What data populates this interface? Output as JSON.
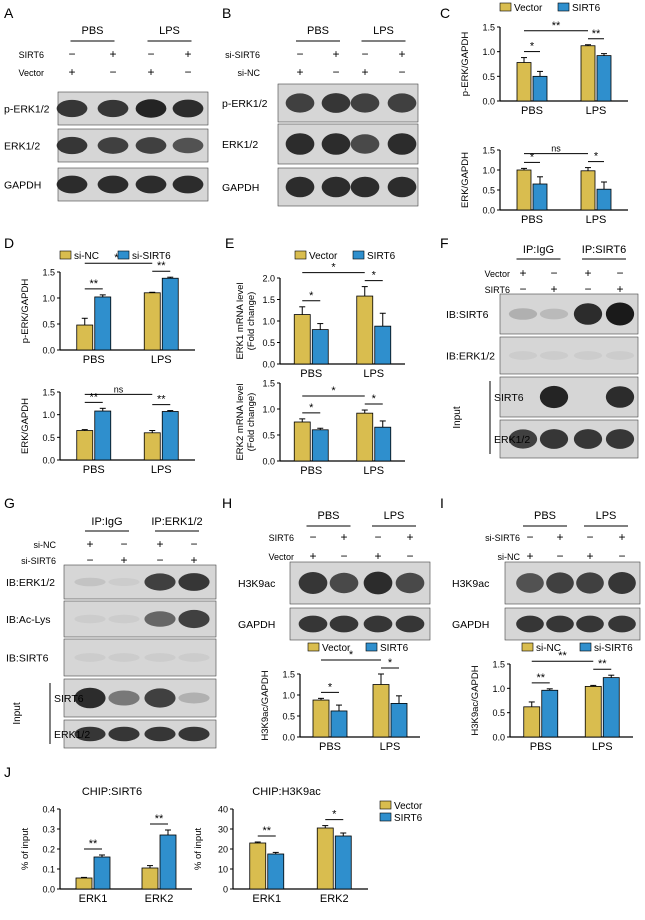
{
  "colors": {
    "vector": "#d9bd4f",
    "sirt6": "#2f8fcd",
    "axis": "#000000",
    "blot_bg": "#d6d6d6",
    "band": "#1a1a1a"
  },
  "panels": {
    "A": {
      "letter": "A",
      "groups": [
        "PBS",
        "LPS"
      ],
      "cond_labels": [
        "SIRT6",
        "Vector"
      ],
      "cond_signs": [
        [
          "−",
          "+",
          "−",
          "+"
        ],
        [
          "+",
          "−",
          "+",
          "−"
        ]
      ],
      "bands": [
        "p-ERK1/2",
        "ERK1/2",
        "GAPDH"
      ]
    },
    "B": {
      "letter": "B",
      "groups": [
        "PBS",
        "LPS"
      ],
      "cond_labels": [
        "si-SIRT6",
        "si-NC"
      ],
      "cond_signs": [
        [
          "−",
          "+",
          "−",
          "+"
        ],
        [
          "+",
          "−",
          "+",
          "−"
        ]
      ],
      "bands": [
        "p-ERK1/2",
        "ERK1/2",
        "GAPDH"
      ]
    },
    "F": {
      "letter": "F",
      "groups": [
        "IP:IgG",
        "IP:SIRT6"
      ],
      "cond_labels": [
        "Vector",
        "SIRT6"
      ],
      "cond_signs": [
        [
          "+",
          "−",
          "+",
          "−"
        ],
        [
          "−",
          "+",
          "−",
          "+"
        ]
      ],
      "bands": [
        "IB:SIRT6",
        "IB:ERK1/2",
        "SIRT6",
        "ERK1/2"
      ],
      "input_label": "Input"
    },
    "G": {
      "letter": "G",
      "groups": [
        "IP:IgG",
        "IP:ERK1/2"
      ],
      "cond_labels": [
        "si-NC",
        "si-SIRT6"
      ],
      "cond_signs": [
        [
          "+",
          "−",
          "+",
          "−"
        ],
        [
          "−",
          "+",
          "−",
          "+"
        ]
      ],
      "bands": [
        "IB:ERK1/2",
        "IB:Ac-Lys",
        "IB:SIRT6",
        "SIRT6",
        "ERK1/2"
      ],
      "input_label": "Input"
    },
    "H": {
      "letter": "H",
      "groups": [
        "PBS",
        "LPS"
      ],
      "cond_labels": [
        "SIRT6",
        "Vector"
      ],
      "cond_signs": [
        [
          "−",
          "+",
          "−",
          "+"
        ],
        [
          "+",
          "−",
          "+",
          "−"
        ]
      ],
      "bands": [
        "H3K9ac",
        "GAPDH"
      ]
    },
    "I": {
      "letter": "I",
      "groups": [
        "PBS",
        "LPS"
      ],
      "cond_labels": [
        "si-SIRT6",
        "si-NC"
      ],
      "cond_signs": [
        [
          "−",
          "+",
          "−",
          "+"
        ],
        [
          "+",
          "−",
          "+",
          "−"
        ]
      ],
      "bands": [
        "H3K9ac",
        "GAPDH"
      ]
    },
    "C": {
      "letter": "C"
    },
    "D": {
      "letter": "D"
    },
    "E": {
      "letter": "E"
    },
    "J": {
      "letter": "J"
    }
  },
  "chart_data": [
    {
      "id": "C1",
      "type": "bar",
      "panel": "C",
      "categories": [
        "PBS",
        "LPS"
      ],
      "legend": [
        "Vector",
        "SIRT6"
      ],
      "series": [
        {
          "name": "Vector",
          "values": [
            0.78,
            1.12
          ],
          "errors": [
            0.1,
            0.02
          ]
        },
        {
          "name": "SIRT6",
          "values": [
            0.5,
            0.92
          ],
          "errors": [
            0.1,
            0.04
          ]
        }
      ],
      "ylabel": "p-ERK/GAPDH",
      "yticks": [
        "0.0",
        "0.5",
        "1.0",
        "1.5"
      ],
      "ylim": [
        0,
        1.5
      ],
      "sig": [
        {
          "a": [
            0,
            0
          ],
          "b": [
            0,
            1
          ],
          "label": "*"
        },
        {
          "a": [
            0,
            0
          ],
          "b": [
            1,
            0
          ],
          "label": "**"
        },
        {
          "a": [
            1,
            0
          ],
          "b": [
            1,
            1
          ],
          "label": "**"
        }
      ]
    },
    {
      "id": "C2",
      "type": "bar",
      "panel": "C",
      "categories": [
        "PBS",
        "LPS"
      ],
      "series": [
        {
          "name": "Vector",
          "values": [
            1.0,
            0.98
          ],
          "errors": [
            0.04,
            0.08
          ]
        },
        {
          "name": "SIRT6",
          "values": [
            0.65,
            0.52
          ],
          "errors": [
            0.18,
            0.18
          ]
        }
      ],
      "ylabel": "ERK/GAPDH",
      "yticks": [
        "0.0",
        "0.5",
        "1.0",
        "1.5"
      ],
      "ylim": [
        0,
        1.5
      ],
      "sig": [
        {
          "a": [
            0,
            0
          ],
          "b": [
            0,
            1
          ],
          "label": "*"
        },
        {
          "a": [
            0,
            0
          ],
          "b": [
            1,
            0
          ],
          "label": "ns"
        },
        {
          "a": [
            1,
            0
          ],
          "b": [
            1,
            1
          ],
          "label": "*"
        }
      ]
    },
    {
      "id": "D1",
      "type": "bar",
      "panel": "D",
      "categories": [
        "PBS",
        "LPS"
      ],
      "legend": [
        "si-NC",
        "si-SIRT6"
      ],
      "series": [
        {
          "name": "si-NC",
          "values": [
            0.48,
            1.1
          ],
          "errors": [
            0.13,
            0.01
          ]
        },
        {
          "name": "si-SIRT6",
          "values": [
            1.02,
            1.38
          ],
          "errors": [
            0.04,
            0.02
          ]
        }
      ],
      "ylabel": "p-ERK/GAPDH",
      "yticks": [
        "0.0",
        "0.5",
        "1.0",
        "1.5"
      ],
      "ylim": [
        0,
        1.5
      ],
      "sig": [
        {
          "a": [
            0,
            0
          ],
          "b": [
            0,
            1
          ],
          "label": "**"
        },
        {
          "a": [
            0,
            0
          ],
          "b": [
            1,
            0
          ],
          "label": "**"
        },
        {
          "a": [
            1,
            0
          ],
          "b": [
            1,
            1
          ],
          "label": "**"
        }
      ]
    },
    {
      "id": "D2",
      "type": "bar",
      "panel": "D",
      "categories": [
        "PBS",
        "LPS"
      ],
      "series": [
        {
          "name": "si-NC",
          "values": [
            0.65,
            0.6
          ],
          "errors": [
            0.02,
            0.05
          ]
        },
        {
          "name": "si-SIRT6",
          "values": [
            1.08,
            1.07
          ],
          "errors": [
            0.06,
            0.02
          ]
        }
      ],
      "ylabel": "ERK/GAPDH",
      "yticks": [
        "0.0",
        "0.5",
        "1.0",
        "1.5"
      ],
      "ylim": [
        0,
        1.5
      ],
      "sig": [
        {
          "a": [
            0,
            0
          ],
          "b": [
            0,
            1
          ],
          "label": "**"
        },
        {
          "a": [
            0,
            0
          ],
          "b": [
            1,
            0
          ],
          "label": "ns"
        },
        {
          "a": [
            1,
            0
          ],
          "b": [
            1,
            1
          ],
          "label": "**"
        }
      ]
    },
    {
      "id": "E1",
      "type": "bar",
      "panel": "E",
      "categories": [
        "PBS",
        "LPS"
      ],
      "legend": [
        "Vector",
        "SIRT6"
      ],
      "series": [
        {
          "name": "Vector",
          "values": [
            1.15,
            1.58
          ],
          "errors": [
            0.18,
            0.22
          ]
        },
        {
          "name": "SIRT6",
          "values": [
            0.8,
            0.88
          ],
          "errors": [
            0.14,
            0.3
          ]
        }
      ],
      "ylabel": "ERK1 mRNA  level\n(Fold change)",
      "yticks": [
        "0.0",
        "0.5",
        "1.0",
        "1.5",
        "2.0"
      ],
      "ylim": [
        0,
        2
      ],
      "sig": [
        {
          "a": [
            0,
            0
          ],
          "b": [
            0,
            1
          ],
          "label": "*"
        },
        {
          "a": [
            0,
            0
          ],
          "b": [
            1,
            0
          ],
          "label": "*"
        },
        {
          "a": [
            1,
            0
          ],
          "b": [
            1,
            1
          ],
          "label": "*"
        }
      ]
    },
    {
      "id": "E2",
      "type": "bar",
      "panel": "E",
      "categories": [
        "PBS",
        "LPS"
      ],
      "series": [
        {
          "name": "Vector",
          "values": [
            0.75,
            0.92
          ],
          "errors": [
            0.06,
            0.06
          ]
        },
        {
          "name": "SIRT6",
          "values": [
            0.6,
            0.65
          ],
          "errors": [
            0.03,
            0.12
          ]
        }
      ],
      "ylabel": "ERK2 mRNA level\n(Fold change)",
      "yticks": [
        "0.0",
        "0.5",
        "1.0",
        "1.5"
      ],
      "ylim": [
        0,
        1.5
      ],
      "sig": [
        {
          "a": [
            0,
            0
          ],
          "b": [
            0,
            1
          ],
          "label": "*"
        },
        {
          "a": [
            0,
            0
          ],
          "b": [
            1,
            0
          ],
          "label": "*"
        },
        {
          "a": [
            1,
            0
          ],
          "b": [
            1,
            1
          ],
          "label": "*"
        }
      ]
    },
    {
      "id": "H1",
      "type": "bar",
      "panel": "H",
      "categories": [
        "PBS",
        "LPS"
      ],
      "legend": [
        "Vector",
        "SIRT6"
      ],
      "series": [
        {
          "name": "Vector",
          "values": [
            0.88,
            1.25
          ],
          "errors": [
            0.04,
            0.25
          ]
        },
        {
          "name": "SIRT6",
          "values": [
            0.62,
            0.8
          ],
          "errors": [
            0.14,
            0.18
          ]
        }
      ],
      "ylabel": "H3K9ac/GAPDH",
      "yticks": [
        "0.0",
        "0.5",
        "1.0",
        "1.5"
      ],
      "ylim": [
        0,
        1.5
      ],
      "sig": [
        {
          "a": [
            0,
            0
          ],
          "b": [
            0,
            1
          ],
          "label": "*"
        },
        {
          "a": [
            0,
            0
          ],
          "b": [
            1,
            0
          ],
          "label": "*"
        },
        {
          "a": [
            1,
            0
          ],
          "b": [
            1,
            1
          ],
          "label": "*"
        }
      ]
    },
    {
      "id": "I1",
      "type": "bar",
      "panel": "I",
      "categories": [
        "PBS",
        "LPS"
      ],
      "legend": [
        "si-NC",
        "si-SIRT6"
      ],
      "series": [
        {
          "name": "si-NC",
          "values": [
            0.62,
            1.04
          ],
          "errors": [
            0.1,
            0.02
          ]
        },
        {
          "name": "si-SIRT6",
          "values": [
            0.96,
            1.22
          ],
          "errors": [
            0.03,
            0.05
          ]
        }
      ],
      "ylabel": "H3K9ac/GAPDH",
      "yticks": [
        "0.0",
        "0.5",
        "1.0",
        "1.5"
      ],
      "ylim": [
        0,
        1.5
      ],
      "sig": [
        {
          "a": [
            0,
            0
          ],
          "b": [
            0,
            1
          ],
          "label": "**"
        },
        {
          "a": [
            0,
            0
          ],
          "b": [
            1,
            0
          ],
          "label": "**"
        },
        {
          "a": [
            1,
            0
          ],
          "b": [
            1,
            1
          ],
          "label": "**"
        }
      ]
    },
    {
      "id": "J1",
      "type": "bar",
      "panel": "J",
      "title": "CHIP:SIRT6",
      "categories": [
        "ERK1",
        "ERK2"
      ],
      "series": [
        {
          "name": "Vector",
          "values": [
            0.055,
            0.105
          ],
          "errors": [
            0.003,
            0.012
          ]
        },
        {
          "name": "SIRT6",
          "values": [
            0.16,
            0.27
          ],
          "errors": [
            0.01,
            0.025
          ]
        }
      ],
      "ylabel": "% of input",
      "yticks": [
        "0.0",
        "0.1",
        "0.2",
        "0.3",
        "0.4"
      ],
      "ylim": [
        0,
        0.4
      ],
      "sig": [
        {
          "a": [
            0,
            0
          ],
          "b": [
            0,
            1
          ],
          "label": "**"
        },
        {
          "a": [
            1,
            0
          ],
          "b": [
            1,
            1
          ],
          "label": "**"
        }
      ]
    },
    {
      "id": "J2",
      "type": "bar",
      "panel": "J",
      "title": "CHIP:H3K9ac",
      "categories": [
        "ERK1",
        "ERK2"
      ],
      "legend": [
        "Vector",
        "SIRT6"
      ],
      "series": [
        {
          "name": "Vector",
          "values": [
            23,
            30.5
          ],
          "errors": [
            0.5,
            1.2
          ]
        },
        {
          "name": "SIRT6",
          "values": [
            17.5,
            26.5
          ],
          "errors": [
            0.8,
            1.5
          ]
        }
      ],
      "ylabel": "% of input",
      "yticks": [
        "0",
        "10",
        "20",
        "30",
        "40"
      ],
      "ylim": [
        0,
        40
      ],
      "sig": [
        {
          "a": [
            0,
            0
          ],
          "b": [
            0,
            1
          ],
          "label": "**"
        },
        {
          "a": [
            1,
            0
          ],
          "b": [
            1,
            1
          ],
          "label": "*"
        }
      ]
    }
  ]
}
